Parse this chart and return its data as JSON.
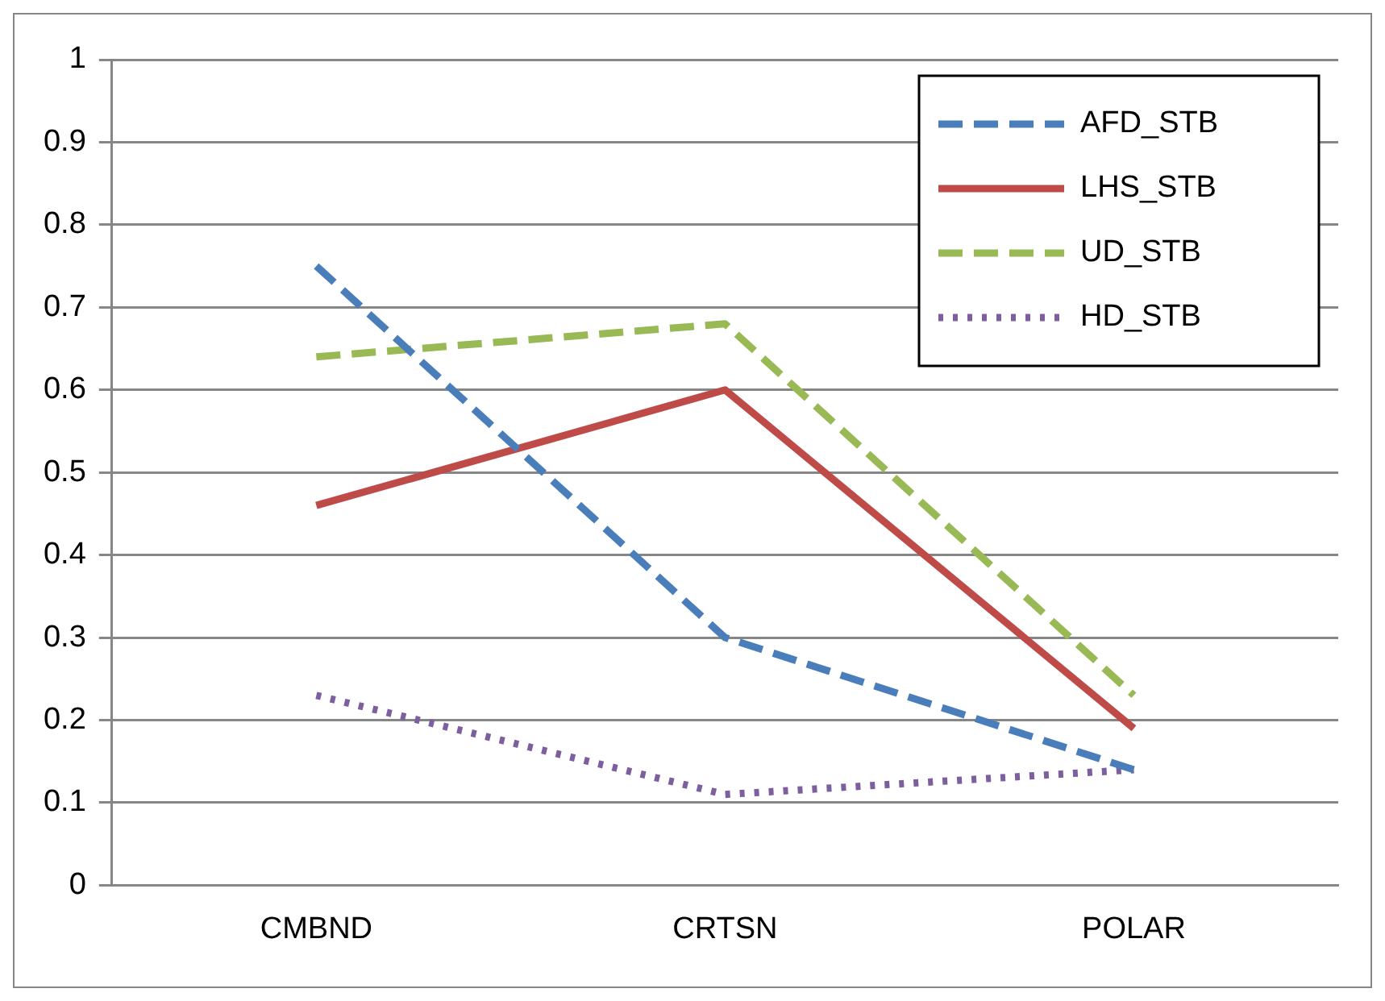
{
  "chart_data": {
    "type": "line",
    "categories": [
      "CMBND",
      "CRTSN",
      "POLAR"
    ],
    "series": [
      {
        "name": "AFD_STB",
        "color": "#4a7ebb",
        "line_style": "dashed",
        "values": [
          0.75,
          0.3,
          0.14
        ]
      },
      {
        "name": "LHS_STB",
        "color": "#be4b48",
        "line_style": "solid",
        "values": [
          0.46,
          0.6,
          0.19
        ]
      },
      {
        "name": "UD_STB",
        "color": "#98b954",
        "line_style": "dashed",
        "values": [
          0.64,
          0.68,
          0.23
        ]
      },
      {
        "name": "HD_STB",
        "color": "#7d5fa0",
        "line_style": "dotted",
        "values": [
          0.23,
          0.11,
          0.14
        ]
      }
    ],
    "ylim": [
      0,
      1
    ],
    "yticks": [
      0,
      0.1,
      0.2,
      0.3,
      0.4,
      0.5,
      0.6,
      0.7,
      0.8,
      0.9,
      1
    ],
    "grid": "y",
    "legend": "top right",
    "marker": "none"
  }
}
